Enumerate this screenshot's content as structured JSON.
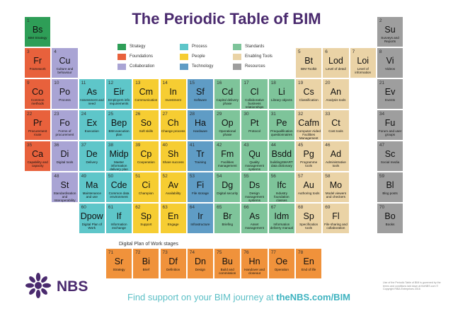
{
  "title": "The Periodic Table of BIM",
  "colors": {
    "strategy": "#2e9e57",
    "foundations": "#e8613c",
    "collaboration": "#a9a4d4",
    "process": "#5ec6c9",
    "people": "#f6cd32",
    "technology": "#5f9cc5",
    "standards": "#7ec49a",
    "enabling_tools": "#ead3a6",
    "resources": "#9e9e9e",
    "dpow": "#f0923b"
  },
  "legend": [
    {
      "label": "Strategy",
      "cat": "strategy"
    },
    {
      "label": "Process",
      "cat": "process"
    },
    {
      "label": "Standards",
      "cat": "standards"
    },
    {
      "label": "Foundations",
      "cat": "foundations"
    },
    {
      "label": "People",
      "cat": "people"
    },
    {
      "label": "Enabling Tools",
      "cat": "enabling_tools"
    },
    {
      "label": "Collaboration",
      "cat": "collaboration"
    },
    {
      "label": "Technology",
      "cat": "technology"
    },
    {
      "label": "Resources",
      "cat": "resources"
    }
  ],
  "elements": [
    {
      "n": "1",
      "s": "Bs",
      "name": "BIM Strategy",
      "cat": "strategy",
      "col": 0,
      "row": 0
    },
    {
      "n": "2",
      "s": "Su",
      "name": "Surveys and Reports",
      "cat": "resources",
      "col": 13,
      "row": 0
    },
    {
      "n": "3",
      "s": "Fr",
      "name": "Framework",
      "cat": "foundations",
      "col": 0,
      "row": 1
    },
    {
      "n": "4",
      "s": "Cu",
      "name": "Culture and behaviour",
      "cat": "collaboration",
      "col": 1,
      "row": 1
    },
    {
      "n": "5",
      "s": "Bt",
      "name": "BIM Toolkit",
      "cat": "enabling_tools",
      "col": 10,
      "row": 1
    },
    {
      "n": "6",
      "s": "Lod",
      "name": "Level of detail",
      "cat": "enabling_tools",
      "col": 11,
      "row": 1
    },
    {
      "n": "7",
      "s": "Loi",
      "name": "Level of information",
      "cat": "enabling_tools",
      "col": 12,
      "row": 1
    },
    {
      "n": "8",
      "s": "Vi",
      "name": "Videos",
      "cat": "resources",
      "col": 13,
      "row": 1
    },
    {
      "n": "9",
      "s": "Co",
      "name": "Common methods",
      "cat": "foundations",
      "col": 0,
      "row": 2
    },
    {
      "n": "10",
      "s": "Po",
      "name": "Process",
      "cat": "collaboration",
      "col": 1,
      "row": 2
    },
    {
      "n": "11",
      "s": "As",
      "name": "Assessment and need",
      "cat": "process",
      "col": 2,
      "row": 2
    },
    {
      "n": "12",
      "s": "Eir",
      "name": "Employers info requirements",
      "cat": "process",
      "col": 3,
      "row": 2
    },
    {
      "n": "13",
      "s": "Cm",
      "name": "Communication",
      "cat": "people",
      "col": 4,
      "row": 2
    },
    {
      "n": "14",
      "s": "In",
      "name": "Investment",
      "cat": "people",
      "col": 5,
      "row": 2
    },
    {
      "n": "15",
      "s": "Sf",
      "name": "Software",
      "cat": "technology",
      "col": 6,
      "row": 2
    },
    {
      "n": "16",
      "s": "Cd",
      "name": "Capital delivery phase",
      "cat": "standards",
      "col": 7,
      "row": 2
    },
    {
      "n": "17",
      "s": "Cl",
      "name": "Collaborative business relationships",
      "cat": "standards",
      "col": 8,
      "row": 2
    },
    {
      "n": "18",
      "s": "Li",
      "name": "Library objects",
      "cat": "standards",
      "col": 9,
      "row": 2
    },
    {
      "n": "19",
      "s": "Cs",
      "name": "Classification",
      "cat": "enabling_tools",
      "col": 10,
      "row": 2
    },
    {
      "n": "20",
      "s": "An",
      "name": "Analysis tools",
      "cat": "enabling_tools",
      "col": 11,
      "row": 2
    },
    {
      "n": "21",
      "s": "Ev",
      "name": "Events",
      "cat": "resources",
      "col": 13,
      "row": 2
    },
    {
      "n": "22",
      "s": "Pr",
      "name": "Procurement route",
      "cat": "foundations",
      "col": 0,
      "row": 3
    },
    {
      "n": "23",
      "s": "Fo",
      "name": "Forms of procurement",
      "cat": "collaboration",
      "col": 1,
      "row": 3
    },
    {
      "n": "24",
      "s": "Ex",
      "name": "Execution",
      "cat": "process",
      "col": 2,
      "row": 3
    },
    {
      "n": "25",
      "s": "Bep",
      "name": "BIM execution plan",
      "cat": "process",
      "col": 3,
      "row": 3
    },
    {
      "n": "26",
      "s": "So",
      "name": "Soft skills",
      "cat": "people",
      "col": 4,
      "row": 3
    },
    {
      "n": "27",
      "s": "Ch",
      "name": "Change process",
      "cat": "people",
      "col": 5,
      "row": 3
    },
    {
      "n": "28",
      "s": "Ha",
      "name": "Hardware",
      "cat": "technology",
      "col": 6,
      "row": 3
    },
    {
      "n": "29",
      "s": "Op",
      "name": "Operational phase",
      "cat": "standards",
      "col": 7,
      "row": 3
    },
    {
      "n": "30",
      "s": "Pt",
      "name": "Protocol",
      "cat": "standards",
      "col": 8,
      "row": 3
    },
    {
      "n": "31",
      "s": "Pe",
      "name": "Prequalification questionnaires",
      "cat": "standards",
      "col": 9,
      "row": 3
    },
    {
      "n": "32",
      "s": "Cafm",
      "name": "Computer-Aided Facilities Management",
      "cat": "enabling_tools",
      "col": 10,
      "row": 3
    },
    {
      "n": "33",
      "s": "Ct",
      "name": "Cost tools",
      "cat": "enabling_tools",
      "col": 11,
      "row": 3
    },
    {
      "n": "34",
      "s": "Fu",
      "name": "Forum and user groups",
      "cat": "resources",
      "col": 13,
      "row": 3
    },
    {
      "n": "35",
      "s": "Ca",
      "name": "Capability and capacity",
      "cat": "foundations",
      "col": 0,
      "row": 4
    },
    {
      "n": "36",
      "s": "Di",
      "name": "Digital tools",
      "cat": "collaboration",
      "col": 1,
      "row": 4
    },
    {
      "n": "37",
      "s": "De",
      "name": "Delivery",
      "cat": "process",
      "col": 2,
      "row": 4
    },
    {
      "n": "38",
      "s": "Midp",
      "name": "Master information delivery plan",
      "cat": "process",
      "col": 3,
      "row": 4
    },
    {
      "n": "39",
      "s": "Cp",
      "name": "Cooperation",
      "cat": "people",
      "col": 4,
      "row": 4
    },
    {
      "n": "40",
      "s": "Sh",
      "name": "Share success",
      "cat": "people",
      "col": 5,
      "row": 4
    },
    {
      "n": "41",
      "s": "Tr",
      "name": "Training",
      "cat": "technology",
      "col": 6,
      "row": 4
    },
    {
      "n": "42",
      "s": "Fm",
      "name": "Facilities management",
      "cat": "standards",
      "col": 7,
      "row": 4
    },
    {
      "n": "43",
      "s": "Qu",
      "name": "Quality management systems",
      "cat": "standards",
      "col": 8,
      "row": 4
    },
    {
      "n": "44",
      "s": "Bsdd",
      "name": "buildingSMART data dictionary",
      "cat": "standards",
      "col": 9,
      "row": 4
    },
    {
      "n": "45",
      "s": "Pg",
      "name": "Programme tools",
      "cat": "enabling_tools",
      "col": 10,
      "row": 4
    },
    {
      "n": "46",
      "s": "Ad",
      "name": "Administrative tools",
      "cat": "enabling_tools",
      "col": 11,
      "row": 4
    },
    {
      "n": "47",
      "s": "Sc",
      "name": "Social media",
      "cat": "resources",
      "col": 13,
      "row": 4
    },
    {
      "n": "48",
      "s": "St",
      "name": "Standardisation and Interoperability",
      "cat": "collaboration",
      "col": 1,
      "row": 5
    },
    {
      "n": "49",
      "s": "Ma",
      "name": "Maintenance and use",
      "cat": "process",
      "col": 2,
      "row": 5
    },
    {
      "n": "50",
      "s": "Cde",
      "name": "Common data environment",
      "cat": "process",
      "col": 3,
      "row": 5
    },
    {
      "n": "51",
      "s": "Ci",
      "name": "Champion",
      "cat": "people",
      "col": 4,
      "row": 5
    },
    {
      "n": "52",
      "s": "Av",
      "name": "Availability",
      "cat": "people",
      "col": 5,
      "row": 5
    },
    {
      "n": "53",
      "s": "Fi",
      "name": "File storage",
      "cat": "technology",
      "col": 6,
      "row": 5
    },
    {
      "n": "54",
      "s": "Dg",
      "name": "Digital security",
      "cat": "standards",
      "col": 7,
      "row": 5
    },
    {
      "n": "55",
      "s": "Ds",
      "name": "Design management systems",
      "cat": "standards",
      "col": 8,
      "row": 5
    },
    {
      "n": "56",
      "s": "Ifc",
      "name": "Industry foundation classes",
      "cat": "standards",
      "col": 9,
      "row": 5
    },
    {
      "n": "57",
      "s": "Au",
      "name": "Authoring tools",
      "cat": "enabling_tools",
      "col": 10,
      "row": 5
    },
    {
      "n": "58",
      "s": "Mo",
      "name": "Model viewers and checkers",
      "cat": "enabling_tools",
      "col": 11,
      "row": 5
    },
    {
      "n": "59",
      "s": "Bl",
      "name": "Blog posts",
      "cat": "resources",
      "col": 13,
      "row": 5
    },
    {
      "n": "60",
      "s": "Dpow",
      "name": "Digital Plan of Work",
      "cat": "process",
      "col": 2,
      "row": 6
    },
    {
      "n": "61",
      "s": "If",
      "name": "Information exchange",
      "cat": "process",
      "col": 3,
      "row": 6
    },
    {
      "n": "62",
      "s": "Sp",
      "name": "Support",
      "cat": "people",
      "col": 4,
      "row": 6
    },
    {
      "n": "63",
      "s": "En",
      "name": "Engage",
      "cat": "people",
      "col": 5,
      "row": 6
    },
    {
      "n": "64",
      "s": "Ir",
      "name": "Infrastructure",
      "cat": "technology",
      "col": 6,
      "row": 6
    },
    {
      "n": "65",
      "s": "Br",
      "name": "Briefing",
      "cat": "standards",
      "col": 7,
      "row": 6
    },
    {
      "n": "66",
      "s": "As",
      "name": "Asset management",
      "cat": "standards",
      "col": 8,
      "row": 6
    },
    {
      "n": "67",
      "s": "Idm",
      "name": "Information delivery manual",
      "cat": "standards",
      "col": 9,
      "row": 6
    },
    {
      "n": "68",
      "s": "Sp",
      "name": "Specification tools",
      "cat": "enabling_tools",
      "col": 10,
      "row": 6
    },
    {
      "n": "69",
      "s": "Fl",
      "name": "File sharing and collaboration",
      "cat": "enabling_tools",
      "col": 11,
      "row": 6
    },
    {
      "n": "70",
      "s": "Bo",
      "name": "Books",
      "cat": "resources",
      "col": 13,
      "row": 6
    }
  ],
  "dpow_label": "Digital Plan of Work stages",
  "dpow": [
    {
      "n": "71",
      "s": "Sr",
      "name": "Strategy"
    },
    {
      "n": "72",
      "s": "Bi",
      "name": "Brief"
    },
    {
      "n": "73",
      "s": "Df",
      "name": "Definition"
    },
    {
      "n": "74",
      "s": "Dn",
      "name": "Design"
    },
    {
      "n": "75",
      "s": "Bu",
      "name": "Build and commission"
    },
    {
      "n": "76",
      "s": "Hn",
      "name": "Handover and closeout"
    },
    {
      "n": "77",
      "s": "Oe",
      "name": "Operation"
    },
    {
      "n": "78",
      "s": "En",
      "name": "End of life"
    }
  ],
  "brand": {
    "name": "NBS"
  },
  "support_text": "Find support on your BIM journey at ",
  "support_link": "theNBS.com/BIM",
  "footnote": "Use of the Periodic Table of BIM is governed by the terms and conditions laid down at theNBS.com © Copyright RIBA Enterprises 2016"
}
